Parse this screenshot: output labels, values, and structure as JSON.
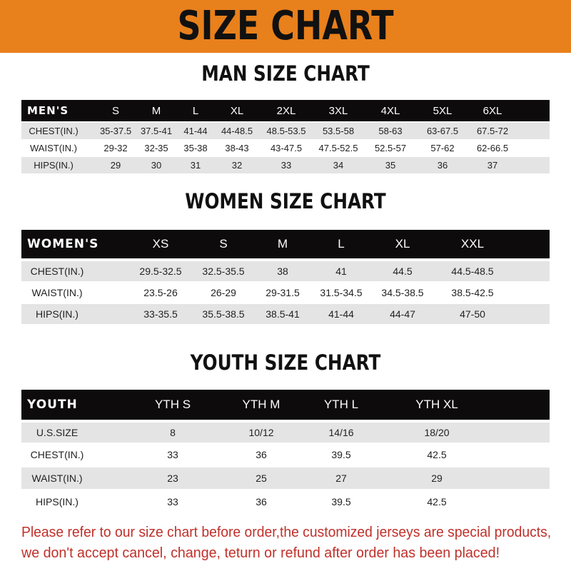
{
  "title": "SIZE CHART",
  "colors": {
    "banner": "#e8801c",
    "header_row": "#0d0b0b",
    "notice": "#c0302a"
  },
  "men": {
    "title": "MAN SIZE CHART",
    "header": [
      "MEN'S",
      "S",
      "M",
      "L",
      "XL",
      "2XL",
      "3XL",
      "4XL",
      "5XL",
      "6XL"
    ],
    "rows": [
      [
        "CHEST(IN.)",
        "35-37.5",
        "37.5-41",
        "41-44",
        "44-48.5",
        "48.5-53.5",
        "53.5-58",
        "58-63",
        "63-67.5",
        "67.5-72"
      ],
      [
        "WAIST(IN.)",
        "29-32",
        "32-35",
        "35-38",
        "38-43",
        "43-47.5",
        "47.5-52.5",
        "52.5-57",
        "57-62",
        "62-66.5"
      ],
      [
        "HIPS(IN.)",
        "29",
        "30",
        "31",
        "32",
        "33",
        "34",
        "35",
        "36",
        "37"
      ]
    ]
  },
  "women": {
    "title": "WOMEN SIZE CHART",
    "header": [
      "WOMEN'S",
      "XS",
      "S",
      "M",
      "L",
      "XL",
      "XXL"
    ],
    "rows": [
      [
        "CHEST(IN.)",
        "29.5-32.5",
        "32.5-35.5",
        "38",
        "41",
        "44.5",
        "44.5-48.5"
      ],
      [
        "WAIST(IN.)",
        "23.5-26",
        "26-29",
        "29-31.5",
        "31.5-34.5",
        "34.5-38.5",
        "38.5-42.5"
      ],
      [
        "HIPS(IN.)",
        "33-35.5",
        "35.5-38.5",
        "38.5-41",
        "41-44",
        "44-47",
        "47-50"
      ]
    ]
  },
  "youth": {
    "title": "YOUTH SIZE CHART",
    "header": [
      "YOUTH",
      "YTH S",
      "YTH M",
      "YTH L",
      "YTH XL"
    ],
    "rows": [
      [
        "U.S.SIZE",
        "8",
        "10/12",
        "14/16",
        "18/20"
      ],
      [
        "CHEST(IN.)",
        "33",
        "36",
        "39.5",
        "42.5"
      ],
      [
        "WAIST(IN.)",
        "23",
        "25",
        "27",
        "29"
      ],
      [
        "HIPS(IN.)",
        "33",
        "36",
        "39.5",
        "42.5"
      ]
    ]
  },
  "notice": [
    "Please refer to our size chart before order,the customized jerseys are special products,",
    "we don't accept cancel, change, teturn or refund after order has been placed!"
  ]
}
